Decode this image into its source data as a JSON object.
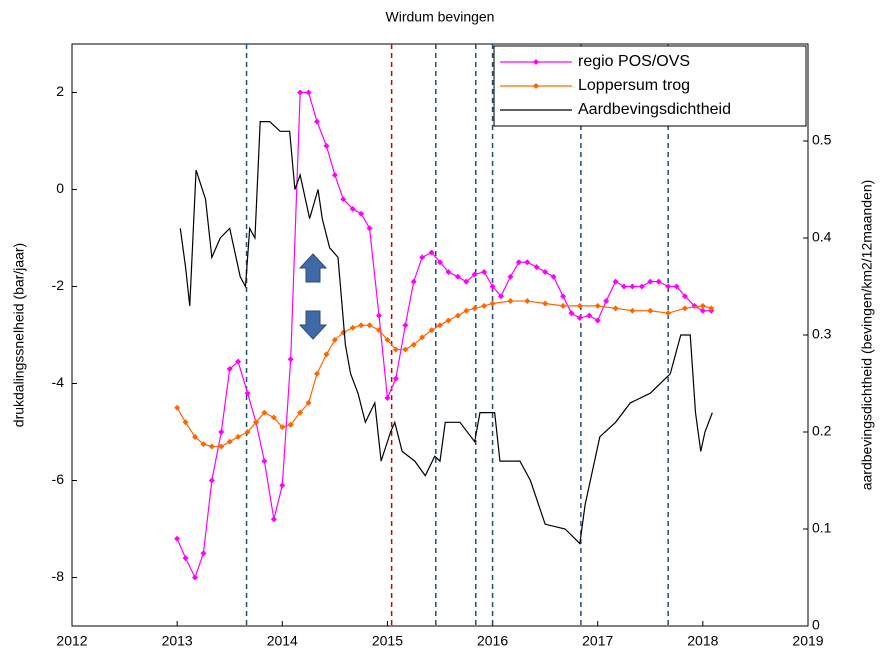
{
  "chart_data": {
    "type": "line",
    "title": "Wirdum bevingen",
    "y_label": "drukdalingssnelheid (bar/jaar)",
    "y2_label": "aardbevingsdichtheid (bevingen/km2/12maanden)",
    "xlim": [
      2012,
      2019
    ],
    "xticks": [
      2012,
      2013,
      2014,
      2015,
      2016,
      2017,
      2018,
      2019
    ],
    "ylim": [
      -9,
      3
    ],
    "yticks": [
      -8,
      -6,
      -4,
      -2,
      0,
      2
    ],
    "y2lim": [
      0,
      0.6
    ],
    "y2ticks": [
      0,
      0.1,
      0.2,
      0.3,
      0.4,
      0.5
    ],
    "legend": "northeast",
    "vlines": [
      {
        "x": 2013.66,
        "color": "#1f4e79"
      },
      {
        "x": 2015.04,
        "color": "#cc0000"
      },
      {
        "x": 2015.46,
        "color": "#1f4e79"
      },
      {
        "x": 2015.84,
        "color": "#1f4e79"
      },
      {
        "x": 2016.0,
        "color": "#1f4e79"
      },
      {
        "x": 2016.84,
        "color": "#1f4e79"
      },
      {
        "x": 2017.67,
        "color": "#1f4e79"
      }
    ],
    "series": [
      {
        "name": "regio POS/OVS",
        "color": "#ff00ff",
        "marker": true,
        "x": [
          2013.0,
          2013.08,
          2013.17,
          2013.25,
          2013.33,
          2013.42,
          2013.5,
          2013.58,
          2013.67,
          2013.75,
          2013.83,
          2013.92,
          2014.0,
          2014.08,
          2014.17,
          2014.25,
          2014.33,
          2014.42,
          2014.5,
          2014.58,
          2014.67,
          2014.75,
          2014.83,
          2014.92,
          2015.0,
          2015.08,
          2015.17,
          2015.25,
          2015.33,
          2015.42,
          2015.5,
          2015.58,
          2015.67,
          2015.75,
          2015.83,
          2015.92,
          2016.0,
          2016.08,
          2016.17,
          2016.25,
          2016.33,
          2016.42,
          2016.5,
          2016.58,
          2016.67,
          2016.75,
          2016.83,
          2016.92,
          2017.0,
          2017.08,
          2017.17,
          2017.25,
          2017.33,
          2017.42,
          2017.5,
          2017.58,
          2017.67,
          2017.75,
          2017.83,
          2017.92,
          2018.0,
          2018.08
        ],
        "values": [
          -7.2,
          -7.6,
          -8.0,
          -7.5,
          -6.0,
          -5.0,
          -3.7,
          -3.55,
          -4.2,
          -4.8,
          -5.6,
          -6.8,
          -6.1,
          -3.5,
          2.0,
          2.0,
          1.4,
          0.9,
          0.3,
          -0.2,
          -0.4,
          -0.5,
          -0.8,
          -2.6,
          -4.3,
          -3.9,
          -2.8,
          -1.9,
          -1.4,
          -1.3,
          -1.5,
          -1.7,
          -1.8,
          -1.9,
          -1.75,
          -1.7,
          -2.0,
          -2.2,
          -1.8,
          -1.5,
          -1.5,
          -1.6,
          -1.7,
          -1.8,
          -2.2,
          -2.55,
          -2.65,
          -2.6,
          -2.7,
          -2.3,
          -1.9,
          -2.0,
          -2.0,
          -2.0,
          -1.9,
          -1.9,
          -2.0,
          -2.0,
          -2.2,
          -2.4,
          -2.5,
          -2.5
        ]
      },
      {
        "name": "Loppersum trog",
        "color": "#ff6600",
        "marker": true,
        "x": [
          2013.0,
          2013.08,
          2013.17,
          2013.25,
          2013.33,
          2013.42,
          2013.5,
          2013.58,
          2013.67,
          2013.75,
          2013.83,
          2013.92,
          2014.0,
          2014.08,
          2014.17,
          2014.25,
          2014.33,
          2014.42,
          2014.5,
          2014.58,
          2014.67,
          2014.75,
          2014.83,
          2014.92,
          2015.0,
          2015.08,
          2015.17,
          2015.25,
          2015.33,
          2015.42,
          2015.5,
          2015.58,
          2015.67,
          2015.75,
          2015.83,
          2015.92,
          2016.0,
          2016.17,
          2016.33,
          2016.5,
          2016.67,
          2016.83,
          2017.0,
          2017.17,
          2017.33,
          2017.5,
          2017.67,
          2017.83,
          2018.0,
          2018.08
        ],
        "values": [
          -4.5,
          -4.8,
          -5.1,
          -5.25,
          -5.3,
          -5.3,
          -5.2,
          -5.1,
          -5.0,
          -4.8,
          -4.6,
          -4.7,
          -4.9,
          -4.85,
          -4.6,
          -4.4,
          -3.8,
          -3.4,
          -3.1,
          -2.95,
          -2.85,
          -2.8,
          -2.8,
          -2.9,
          -3.1,
          -3.3,
          -3.3,
          -3.2,
          -3.05,
          -2.9,
          -2.8,
          -2.7,
          -2.6,
          -2.5,
          -2.45,
          -2.4,
          -2.35,
          -2.3,
          -2.3,
          -2.35,
          -2.4,
          -2.4,
          -2.4,
          -2.45,
          -2.5,
          -2.5,
          -2.55,
          -2.45,
          -2.4,
          -2.45
        ]
      },
      {
        "name": "Aardbevingsdichtheid",
        "color": "#000000",
        "marker": false,
        "axis": "y2",
        "x": [
          2013.03,
          2013.08,
          2013.12,
          2013.18,
          2013.27,
          2013.33,
          2013.41,
          2013.5,
          2013.6,
          2013.65,
          2013.69,
          2013.74,
          2013.79,
          2013.88,
          2013.98,
          2014.07,
          2014.12,
          2014.17,
          2014.26,
          2014.34,
          2014.38,
          2014.45,
          2014.53,
          2014.6,
          2014.65,
          2014.72,
          2014.79,
          2014.88,
          2014.94,
          2015.03,
          2015.07,
          2015.14,
          2015.26,
          2015.36,
          2015.45,
          2015.5,
          2015.55,
          2015.69,
          2015.83,
          2015.88,
          2016.02,
          2016.07,
          2016.26,
          2016.36,
          2016.5,
          2016.69,
          2016.83,
          2016.88,
          2017.02,
          2017.17,
          2017.31,
          2017.5,
          2017.69,
          2017.79,
          2017.88,
          2017.93,
          2017.98,
          2018.02,
          2018.09
        ],
        "values": [
          0.41,
          0.37,
          0.33,
          0.47,
          0.44,
          0.38,
          0.4,
          0.41,
          0.36,
          0.35,
          0.41,
          0.4,
          0.52,
          0.52,
          0.51,
          0.51,
          0.45,
          0.465,
          0.42,
          0.45,
          0.42,
          0.39,
          0.38,
          0.29,
          0.26,
          0.24,
          0.21,
          0.23,
          0.17,
          0.2,
          0.21,
          0.18,
          0.17,
          0.155,
          0.175,
          0.17,
          0.21,
          0.21,
          0.19,
          0.22,
          0.22,
          0.17,
          0.17,
          0.15,
          0.105,
          0.1,
          0.085,
          0.125,
          0.195,
          0.21,
          0.23,
          0.24,
          0.26,
          0.3,
          0.3,
          0.22,
          0.18,
          0.2,
          0.22
        ]
      }
    ]
  }
}
